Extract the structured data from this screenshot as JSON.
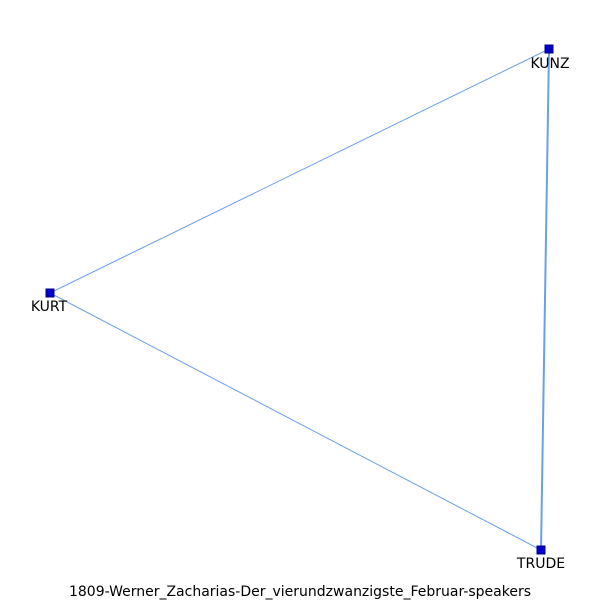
{
  "graph": {
    "caption": "1809-Werner_Zacharias-Der_vierundzwanzigste_Februar-speakers",
    "colors": {
      "edge": "#6aa0e8",
      "node_fill": "#0000cc",
      "node_stroke": "#000080",
      "label": "#000000"
    },
    "nodes": [
      {
        "id": "KUNZ",
        "label": "KUNZ"
      },
      {
        "id": "KURT",
        "label": "KURT"
      },
      {
        "id": "TRUDE",
        "label": "TRUDE"
      }
    ],
    "edges": [
      {
        "source": "KUNZ",
        "target": "KURT",
        "weight": 1
      },
      {
        "source": "KURT",
        "target": "TRUDE",
        "weight": 1
      },
      {
        "source": "KUNZ",
        "target": "TRUDE",
        "weight": 2
      }
    ]
  }
}
